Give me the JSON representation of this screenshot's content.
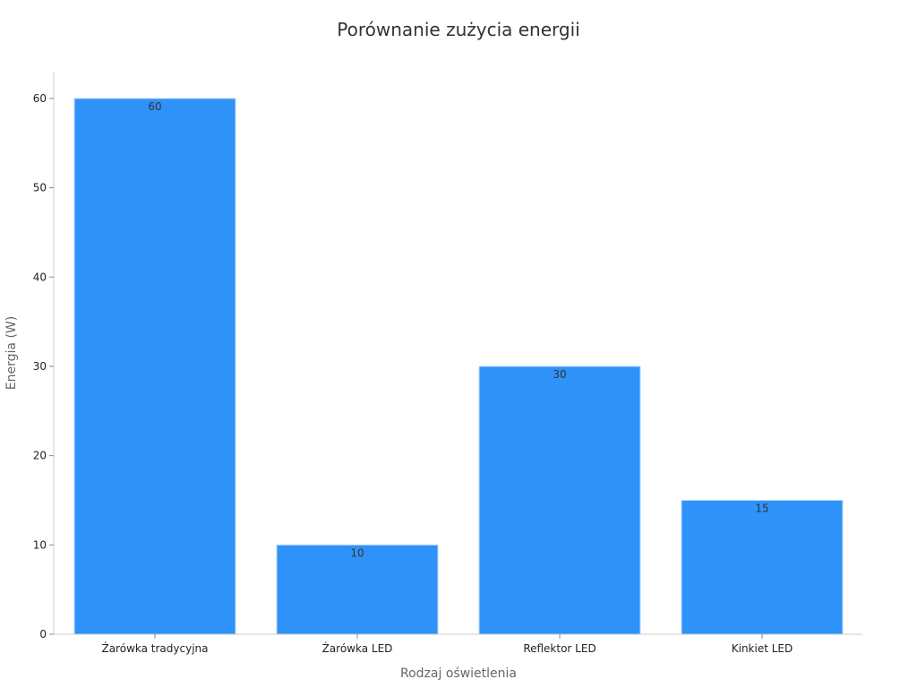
{
  "chart_data": {
    "type": "bar",
    "title": "Porównanie zużycia energii",
    "xlabel": "Rodzaj oświetlenia",
    "ylabel": "Energia (W)",
    "categories": [
      "Żarówka tradycyjna",
      "Żarówka LED",
      "Reflektor LED",
      "Kinkiet LED"
    ],
    "values": [
      60,
      10,
      30,
      15
    ],
    "ylim": [
      0,
      63
    ],
    "yticks": [
      0,
      10,
      20,
      30,
      40,
      50,
      60
    ],
    "grid": false,
    "legend": "none",
    "colors": {
      "bar": "#2f92f8",
      "bar_edge": "#b9d9fb"
    }
  }
}
